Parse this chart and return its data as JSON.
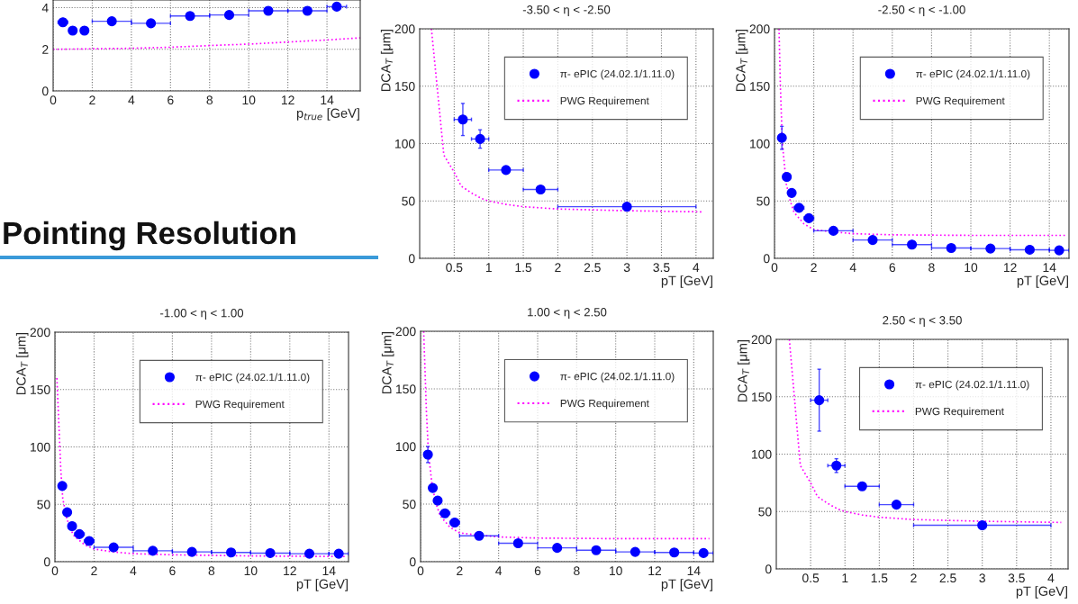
{
  "chart_data": [
    {
      "type": "scatter",
      "xlabel": "p$_{true}$ [GeV]",
      "xlim": [
        0,
        15.7
      ],
      "xticks": [
        0,
        2,
        4,
        6,
        8,
        10,
        12,
        14
      ],
      "ylim": [
        0,
        4.37
      ],
      "yticks": [
        0,
        2,
        4
      ],
      "grid": true,
      "legend": false,
      "series": [
        {
          "type": "scatter",
          "color": "#0000ff",
          "marker": "circle",
          "x": [
            0.5,
            1,
            1.6,
            3,
            5,
            7,
            9,
            11,
            13,
            14.5
          ],
          "values": [
            3.3,
            2.9,
            2.9,
            3.35,
            3.25,
            3.6,
            3.65,
            3.85,
            3.85,
            4.05
          ],
          "xerrors": [
            0.25,
            null,
            null,
            1,
            1,
            1,
            1,
            1,
            1,
            0.5
          ]
        },
        {
          "type": "line",
          "color": "#ff00ff",
          "line_style": "dotted",
          "x": [
            0,
            4,
            6,
            8,
            10,
            12,
            14,
            15.7
          ],
          "values": [
            2,
            2.05,
            2.1,
            2.18,
            2.25,
            2.35,
            2.45,
            2.55
          ]
        }
      ]
    },
    {
      "type": "scatter",
      "title": "-3.50 < η < -2.50",
      "xlabel": "pT [GeV]",
      "ylabel": "DCA$_{T}$ [μm]",
      "xlim": [
        0,
        4.25
      ],
      "xticks": [
        0.5,
        1,
        1.5,
        2,
        2.5,
        3,
        3.5,
        4
      ],
      "ylim": [
        0,
        200
      ],
      "yticks": [
        0,
        50,
        100,
        150,
        200
      ],
      "grid": true,
      "legend": "top right",
      "series": [
        {
          "type": "scatter",
          "name": "π- ePIC (24.02.1/1.11.0)",
          "color": "#0000ff",
          "marker": "circle",
          "x": [
            0.625,
            0.875,
            1.25,
            1.75,
            3
          ],
          "values": [
            121,
            104,
            77,
            60,
            45
          ],
          "xerrors": [
            0.125,
            0.125,
            0.25,
            0.25,
            1
          ],
          "errors": [
            14,
            8,
            null,
            null,
            null
          ]
        },
        {
          "type": "line",
          "name": "PWG Requirement",
          "color": "#ff00ff",
          "line_style": "dotted",
          "x": [
            0.17,
            0.35,
            0.5,
            0.6,
            0.75,
            0.9,
            1.0,
            1.25,
            1.5,
            2,
            3,
            4.1
          ],
          "values": [
            200,
            90,
            75,
            63,
            57,
            52,
            50,
            47,
            45,
            43,
            41.5,
            40.5
          ]
        }
      ]
    },
    {
      "type": "scatter",
      "title": "-2.50 < η < -1.00",
      "xlabel": "pT [GeV]",
      "ylabel": "DCA$_{T}$ [μm]",
      "xlim": [
        0,
        15
      ],
      "xticks": [
        0,
        2,
        4,
        6,
        8,
        10,
        12,
        14
      ],
      "ylim": [
        0,
        200
      ],
      "yticks": [
        0,
        50,
        100,
        150,
        200
      ],
      "grid": true,
      "legend": "top right",
      "series": [
        {
          "type": "scatter",
          "name": "π- ePIC (24.02.1/1.11.0)",
          "color": "#0000ff",
          "marker": "circle",
          "x": [
            0.375,
            0.625,
            0.875,
            1.25,
            1.75,
            3,
            5,
            7,
            9,
            11,
            13,
            14.5
          ],
          "values": [
            105,
            71,
            57,
            44,
            35,
            24,
            16,
            12,
            9,
            8.5,
            7.5,
            7
          ],
          "xerrors": [
            0.125,
            0.125,
            0.125,
            0.25,
            0.25,
            1,
            1,
            1,
            1,
            1,
            1,
            0.5
          ],
          "errors": [
            10,
            null,
            null,
            null,
            null,
            null,
            null,
            null,
            null,
            null,
            null,
            null
          ]
        },
        {
          "type": "line",
          "name": "PWG Requirement",
          "color": "#ff00ff",
          "line_style": "dotted",
          "x": [
            0.23,
            0.3,
            0.4,
            0.6,
            0.8,
            1,
            1.5,
            2,
            3,
            4,
            6,
            10,
            14.8
          ],
          "values": [
            200,
            150,
            100,
            65,
            50,
            40,
            30,
            25,
            23,
            21.5,
            20.5,
            20,
            20
          ]
        }
      ]
    },
    {
      "type": "scatter",
      "title": "-1.00 < η < 1.00",
      "xlabel": "pT [GeV]",
      "ylabel": "DCA$_{T}$ [μm]",
      "xlim": [
        0,
        15
      ],
      "xticks": [
        0,
        2,
        4,
        6,
        8,
        10,
        12,
        14
      ],
      "ylim": [
        0,
        200
      ],
      "yticks": [
        0,
        50,
        100,
        150,
        200
      ],
      "grid": true,
      "legend": "top right",
      "series": [
        {
          "type": "scatter",
          "name": "π- ePIC (24.02.1/1.11.0)",
          "color": "#0000ff",
          "marker": "circle",
          "x": [
            0.375,
            0.625,
            0.875,
            1.25,
            1.75,
            3,
            5,
            7,
            9,
            11,
            13,
            14.5
          ],
          "values": [
            66,
            43,
            31,
            24,
            18,
            12.5,
            9.5,
            8.5,
            8,
            7.5,
            7,
            7
          ],
          "xerrors": [
            0.125,
            0.125,
            0.125,
            0.25,
            0.25,
            1,
            1,
            1,
            1,
            1,
            1,
            0.5
          ]
        },
        {
          "type": "line",
          "name": "PWG Requirement",
          "color": "#ff00ff",
          "line_style": "dotted",
          "x": [
            0.1,
            0.2,
            0.3,
            0.4,
            0.6,
            0.8,
            1,
            1.5,
            2,
            3,
            4,
            6,
            10,
            14.8
          ],
          "values": [
            160,
            120,
            80,
            55,
            38,
            28,
            22,
            15,
            11,
            8.5,
            7,
            6,
            5,
            4.5
          ]
        }
      ]
    },
    {
      "type": "scatter",
      "title": "1.00 < η < 2.50",
      "xlabel": "pT [GeV]",
      "ylabel": "DCA$_{T}$ [μm]",
      "xlim": [
        0,
        15
      ],
      "xticks": [
        0,
        2,
        4,
        6,
        8,
        10,
        12,
        14
      ],
      "ylim": [
        0,
        200
      ],
      "yticks": [
        0,
        50,
        100,
        150,
        200
      ],
      "grid": true,
      "legend": "top right",
      "series": [
        {
          "type": "scatter",
          "name": "π- ePIC (24.02.1/1.11.0)",
          "color": "#0000ff",
          "marker": "circle",
          "x": [
            0.375,
            0.625,
            0.875,
            1.25,
            1.75,
            3,
            5,
            7,
            9,
            11,
            13,
            14.5
          ],
          "values": [
            93,
            64,
            53,
            42,
            34,
            22.5,
            16,
            12,
            10,
            8.5,
            8,
            7.5
          ],
          "xerrors": [
            0.125,
            0.125,
            0.125,
            0.25,
            0.25,
            1,
            1,
            1,
            1,
            1,
            1,
            0.5
          ],
          "errors": [
            7,
            null,
            null,
            null,
            null,
            null,
            null,
            null,
            null,
            null,
            null,
            null
          ]
        },
        {
          "type": "line",
          "name": "PWG Requirement",
          "color": "#ff00ff",
          "line_style": "dotted",
          "x": [
            0.16,
            0.3,
            0.4,
            0.6,
            0.8,
            1,
            1.5,
            2,
            3,
            4,
            6,
            10,
            14.8
          ],
          "values": [
            200,
            130,
            95,
            65,
            50,
            40,
            30,
            25,
            23,
            21.5,
            20.5,
            20,
            20
          ]
        }
      ]
    },
    {
      "type": "scatter",
      "title": "2.50 < η < 3.50",
      "xlabel": "pT [GeV]",
      "ylabel": "DCA$_{T}$ [μm]",
      "xlim": [
        0,
        4.25
      ],
      "xticks": [
        0.5,
        1,
        1.5,
        2,
        2.5,
        3,
        3.5,
        4
      ],
      "ylim": [
        0,
        200
      ],
      "yticks": [
        0,
        50,
        100,
        150,
        200
      ],
      "grid": true,
      "legend": "top right",
      "series": [
        {
          "type": "scatter",
          "name": "π- ePIC (24.02.1/1.11.0)",
          "color": "#0000ff",
          "marker": "circle",
          "x": [
            0.625,
            0.875,
            1.25,
            1.75,
            3
          ],
          "values": [
            147,
            90,
            72,
            56,
            38
          ],
          "xerrors": [
            0.125,
            0.125,
            0.25,
            0.25,
            1
          ],
          "errors": [
            27,
            6,
            null,
            null,
            null
          ]
        },
        {
          "type": "line",
          "name": "PWG Requirement",
          "color": "#ff00ff",
          "line_style": "dotted",
          "x": [
            0.19,
            0.35,
            0.5,
            0.6,
            0.75,
            0.9,
            1.0,
            1.25,
            1.5,
            2,
            3,
            4.15
          ],
          "values": [
            200,
            90,
            75,
            63,
            57,
            52,
            50,
            47,
            45,
            43,
            41.5,
            40.5
          ]
        }
      ]
    },
    {
      "type": "other",
      "title": "Pointing Resolution"
    }
  ]
}
